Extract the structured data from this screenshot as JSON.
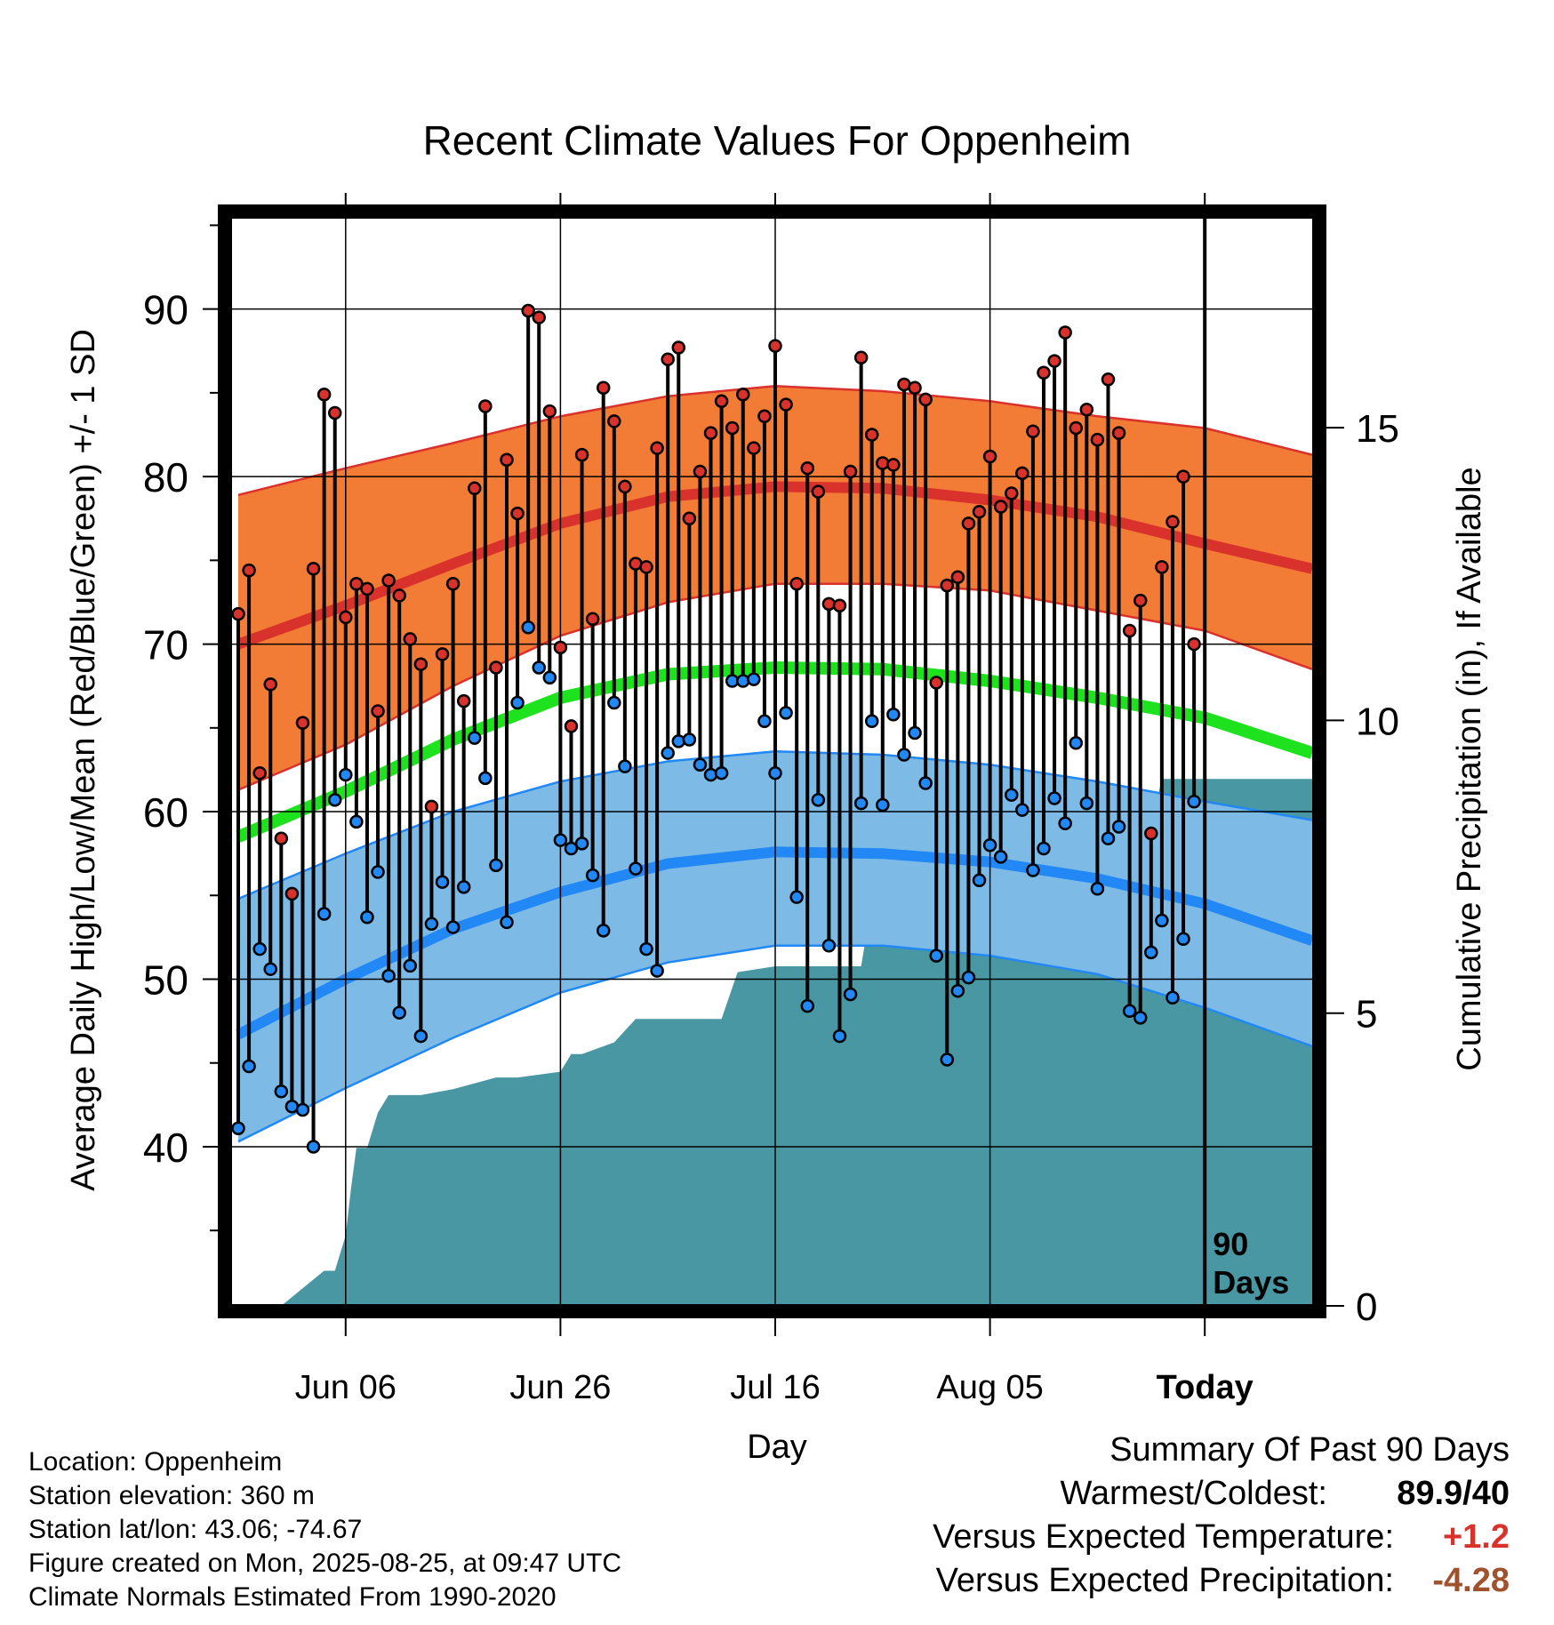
{
  "chart_data": {
    "type": "line",
    "title": "Recent Climate Values For Oppenheim",
    "xlabel": "Day",
    "ylabel": "Average Daily High/Low/Mean (Red/Blue/Green) +/- 1 SD",
    "y2label": "Cumulative Precipitation (in), If Available",
    "xlim": [
      0,
      100
    ],
    "ylim": [
      30.5,
      95.5
    ],
    "y2lim": [
      0,
      18.6
    ],
    "x_ticks": [
      {
        "x": 10,
        "label": "Jun 06"
      },
      {
        "x": 30,
        "label": "Jun 26"
      },
      {
        "x": 50,
        "label": "Jul 16"
      },
      {
        "x": 70,
        "label": "Aug 05"
      },
      {
        "x": 90,
        "label": "Today"
      }
    ],
    "y_ticks": [
      40,
      50,
      60,
      70,
      80,
      90
    ],
    "y2_ticks": [
      0,
      5,
      10,
      15
    ],
    "grid": true,
    "today_marker": {
      "x": 90,
      "label_line1": "90",
      "label_line2": "Days"
    },
    "normals_x": [
      0,
      10,
      20,
      30,
      40,
      50,
      60,
      70,
      80,
      90,
      100
    ],
    "normal_high_mean": [
      70.0,
      72.3,
      74.8,
      77.2,
      78.8,
      79.4,
      79.3,
      78.6,
      77.6,
      76.0,
      74.5
    ],
    "normal_high_upper": [
      78.9,
      80.5,
      82.0,
      83.6,
      84.8,
      85.4,
      85.1,
      84.5,
      83.6,
      82.9,
      81.3
    ],
    "normal_high_lower": [
      61.3,
      64.0,
      67.5,
      70.5,
      72.5,
      73.6,
      73.6,
      73.2,
      72.0,
      70.8,
      68.5
    ],
    "normal_mean": [
      58.5,
      61.2,
      64.3,
      66.8,
      68.2,
      68.6,
      68.5,
      67.8,
      66.8,
      65.6,
      63.5
    ],
    "normal_low_mean": [
      46.7,
      50.0,
      53.0,
      55.2,
      56.9,
      57.6,
      57.5,
      57.0,
      56.0,
      54.5,
      52.3
    ],
    "normal_low_upper": [
      54.8,
      57.5,
      60.0,
      61.8,
      63.0,
      63.6,
      63.4,
      62.8,
      61.8,
      60.6,
      59.5
    ],
    "normal_low_lower": [
      40.3,
      43.5,
      46.5,
      49.2,
      51.0,
      52.0,
      52.0,
      51.4,
      50.3,
      48.3,
      46.0
    ],
    "daily_high": [
      71.8,
      74.4,
      62.3,
      67.6,
      58.4,
      55.1,
      65.3,
      74.5,
      84.9,
      83.8,
      71.6,
      73.6,
      73.3,
      66.0,
      73.8,
      72.9,
      70.3,
      68.8,
      60.3,
      69.4,
      73.6,
      66.6,
      79.3,
      84.2,
      68.6,
      81.0,
      77.8,
      89.9,
      89.5,
      83.9,
      69.8,
      65.1,
      81.3,
      71.5,
      85.3,
      83.3,
      79.4,
      74.8,
      74.6,
      81.7,
      87.0,
      87.7,
      77.5,
      80.3,
      82.6,
      84.5,
      82.9,
      84.9,
      81.7,
      83.6,
      87.8,
      84.3,
      73.6,
      80.5,
      79.1,
      72.4,
      72.3,
      80.3,
      87.1,
      82.5,
      80.8,
      80.7,
      85.5,
      85.3,
      84.6,
      67.7,
      73.5,
      74.0,
      77.2,
      77.9,
      81.2,
      78.2,
      79.0,
      80.2,
      82.7,
      86.2,
      86.9,
      88.6,
      82.9,
      84.0,
      82.2,
      85.8,
      82.6,
      70.8,
      72.6,
      58.7,
      74.6,
      77.3,
      80.0,
      70.0
    ],
    "daily_low": [
      41.1,
      44.8,
      51.8,
      50.6,
      43.3,
      42.4,
      42.2,
      40.0,
      53.9,
      60.7,
      62.2,
      59.4,
      53.7,
      56.4,
      50.2,
      48.0,
      50.8,
      46.6,
      53.3,
      55.8,
      53.1,
      55.5,
      64.4,
      62.0,
      56.8,
      53.4,
      66.5,
      71.0,
      68.6,
      68.0,
      58.3,
      57.8,
      58.1,
      56.2,
      52.9,
      66.5,
      62.7,
      56.6,
      51.8,
      50.5,
      63.5,
      64.2,
      64.3,
      62.8,
      62.2,
      62.3,
      67.8,
      67.8,
      67.9,
      65.4,
      62.3,
      65.9,
      54.9,
      48.4,
      60.7,
      52.0,
      46.6,
      49.1,
      60.5,
      65.4,
      60.4,
      65.8,
      63.4,
      64.7,
      61.7,
      51.4,
      45.2,
      49.3,
      50.1,
      55.9,
      58.0,
      57.3,
      61.0,
      60.1,
      56.5,
      57.8,
      60.8,
      59.3,
      64.1,
      60.5,
      55.4,
      58.4,
      59.1,
      48.1,
      47.7,
      51.6,
      53.5,
      48.9,
      52.4,
      60.6
    ],
    "precip_cumulative": {
      "x": [
        0,
        4,
        8,
        9,
        10,
        10.5,
        11,
        12,
        13,
        14,
        17,
        20,
        24,
        26,
        30,
        31,
        32,
        35,
        37,
        45,
        46.5,
        50,
        58,
        59,
        62,
        63,
        65,
        73,
        77,
        80,
        85,
        86,
        94,
        100
      ],
      "values": [
        0,
        0,
        0.6,
        0.6,
        1.2,
        2.0,
        2.7,
        2.7,
        3.3,
        3.6,
        3.6,
        3.7,
        3.9,
        3.9,
        4.0,
        4.3,
        4.3,
        4.5,
        4.9,
        4.9,
        5.7,
        5.8,
        5.8,
        6.9,
        6.9,
        7.9,
        8.0,
        8.0,
        8.1,
        8.1,
        8.2,
        9.0,
        9.0,
        9.0
      ]
    }
  },
  "location": {
    "location_line": "Location: Oppenheim",
    "elevation_line": "Station elevation: 360 m",
    "latlon_line": "Station lat/lon: 43.06; -74.67",
    "created_line": "Figure created on Mon, 2025-08-25, at 09:47 UTC",
    "normals_line": "Climate Normals Estimated From 1990-2020"
  },
  "summary": {
    "title": "Summary Of Past 90 Days",
    "warm_cold_label": "Warmest/Coldest:",
    "warm_cold_value": "89.9/40",
    "temp_label": "Versus Expected Temperature:",
    "temp_value": "+1.2",
    "precip_label": "Versus Expected Precipitation:",
    "precip_value": "-4.28"
  },
  "colors": {
    "high_band": "#f27b35",
    "high_line": "#d9312b",
    "high_edge": "#d9312b",
    "mean_line": "#1de21d",
    "low_band": "#7dbbe6",
    "low_line": "#2188f5",
    "low_edge": "#2188f5",
    "precip_fill": "#4897a3",
    "temp_anomaly": "#d9312b",
    "precip_anomaly": "#a0522d"
  }
}
